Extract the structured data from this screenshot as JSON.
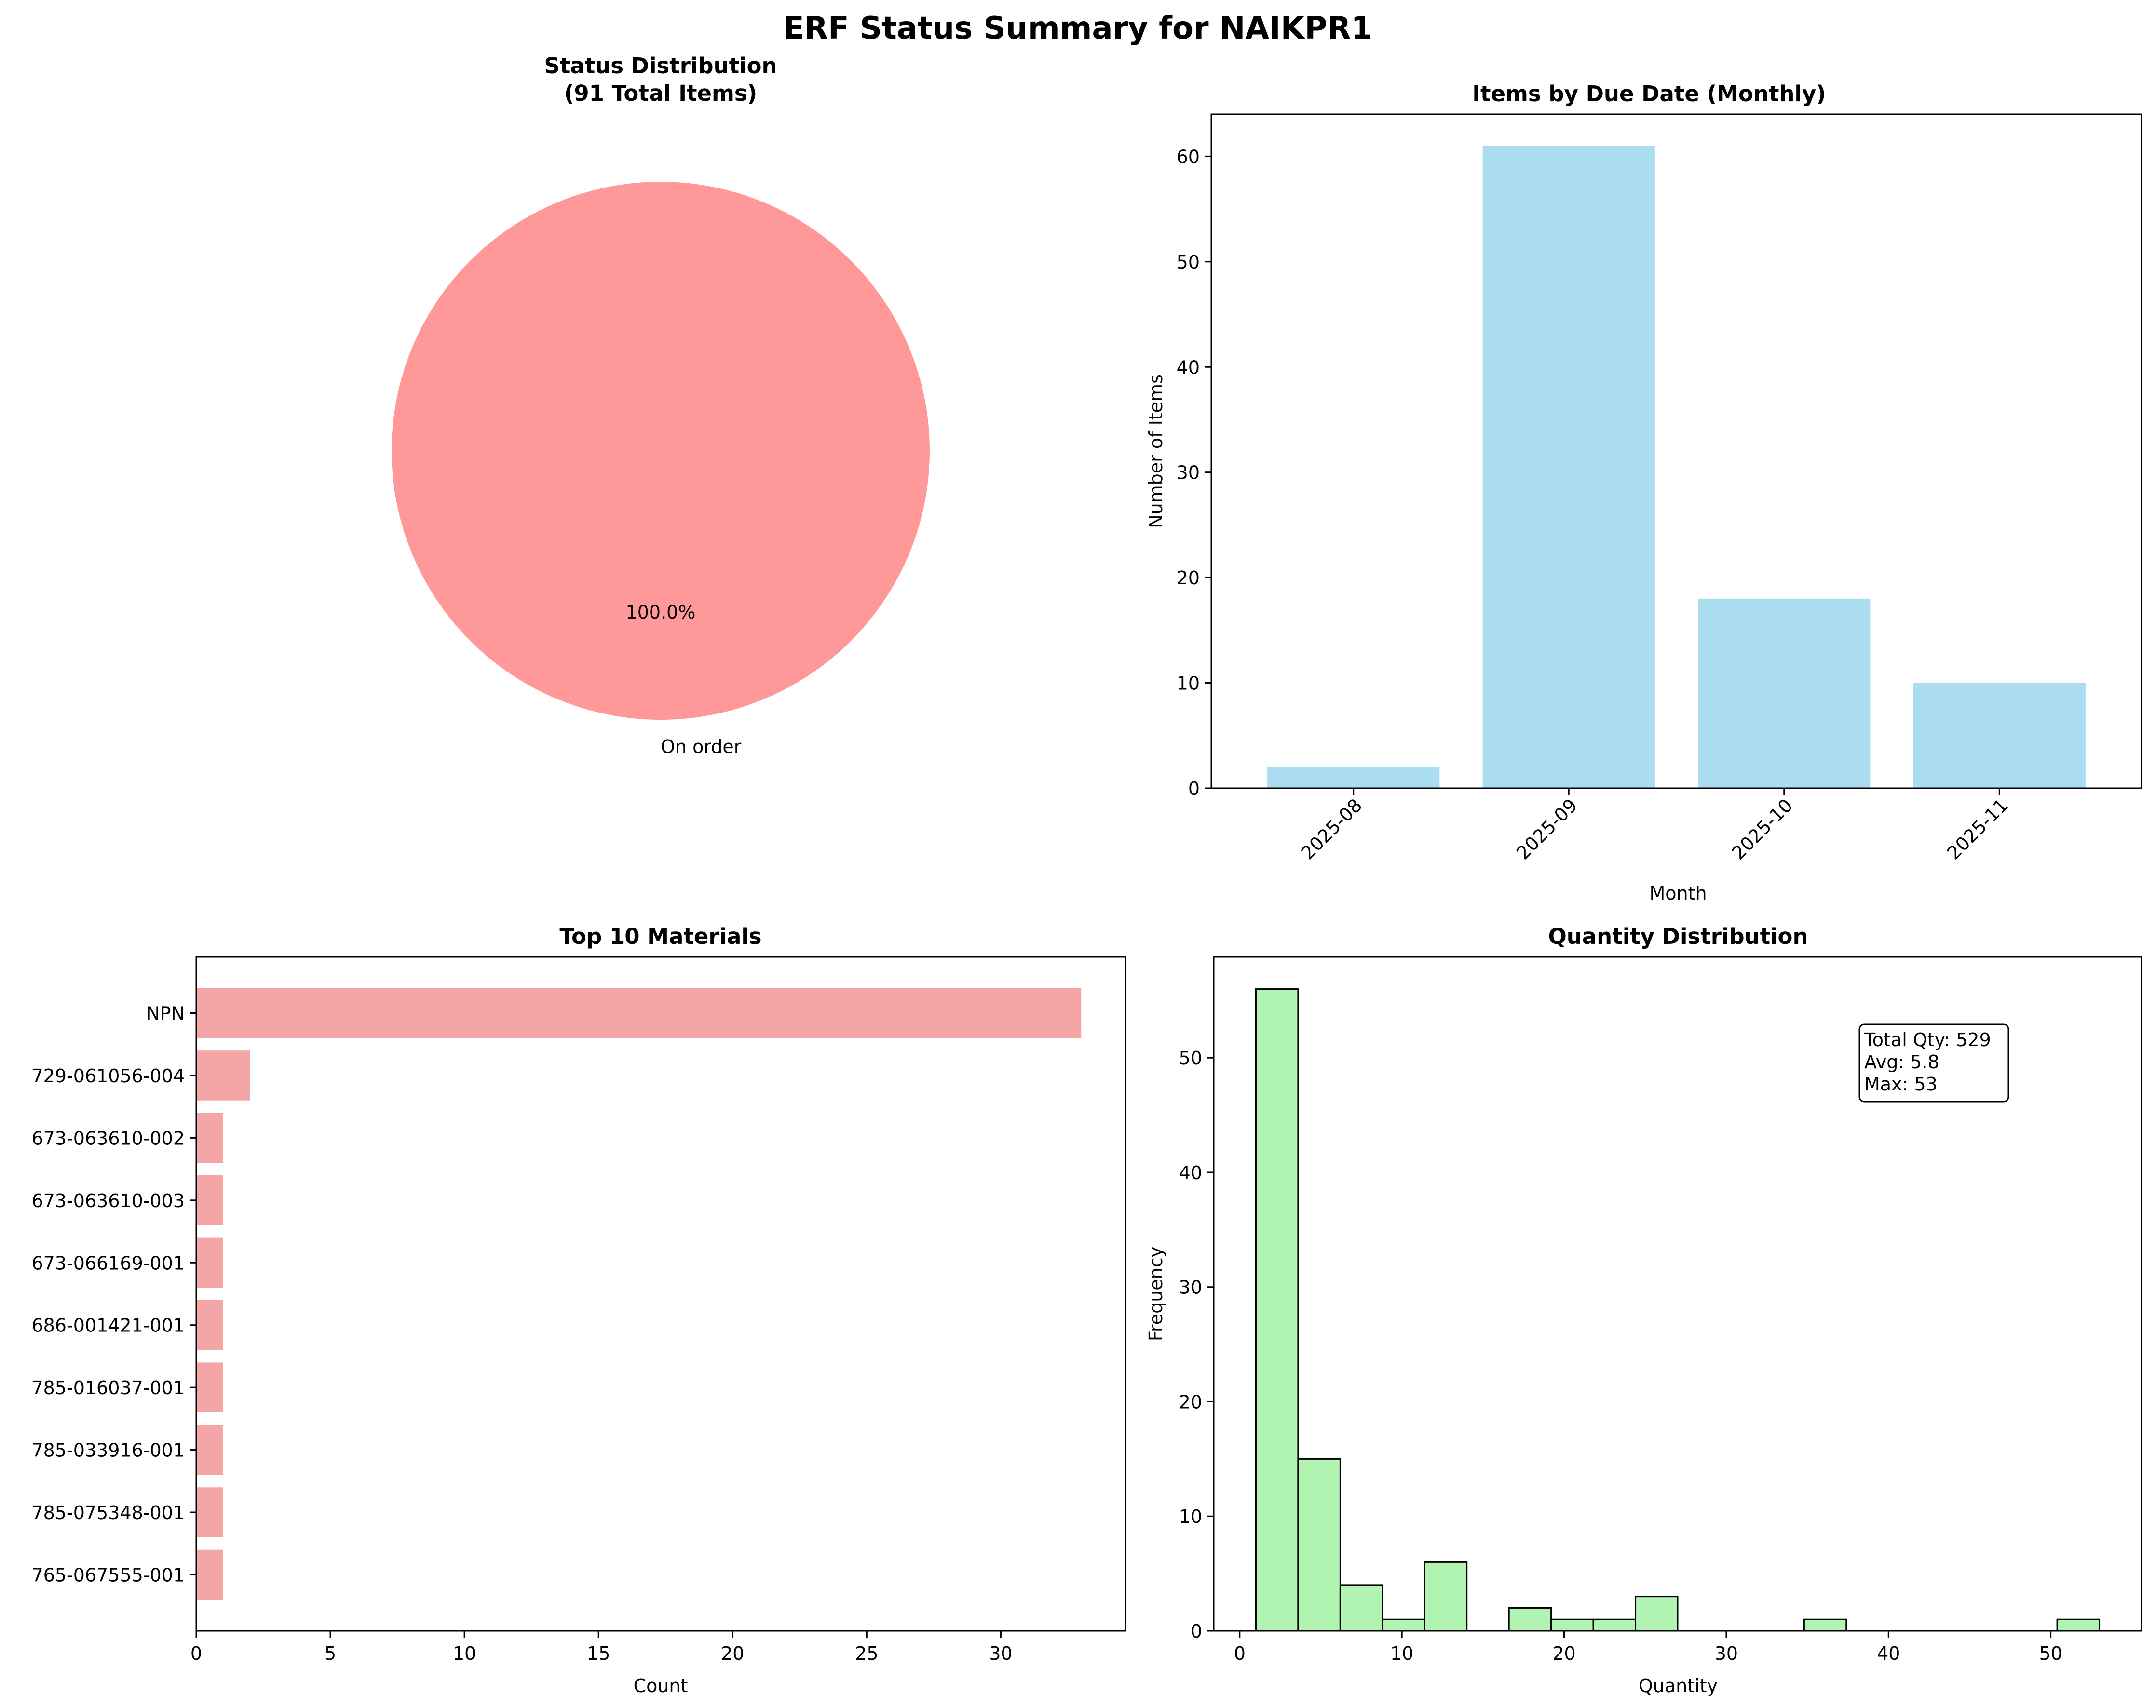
{
  "title": "ERF Status Summary for NAIKPR1",
  "colors": {
    "pie": "#ff9999",
    "monthly_bar": "#87ceeb",
    "materials_bar": "#f08080",
    "histogram": "#90ee90",
    "edge": "#000000"
  },
  "chart_data": [
    {
      "type": "pie",
      "title": "Status Distribution\n(91 Total Items)",
      "title_lines": [
        "Status Distribution",
        "(91 Total Items)"
      ],
      "slices": [
        {
          "label": "On order",
          "value": 91,
          "pct_label": "100.0%"
        }
      ]
    },
    {
      "type": "bar",
      "title": "Items by Due Date (Monthly)",
      "xlabel": "Month",
      "ylabel": "Number of Items",
      "categories": [
        "2025-08",
        "2025-09",
        "2025-10",
        "2025-11"
      ],
      "values": [
        2,
        61,
        18,
        10
      ],
      "ylim": [
        0,
        64
      ],
      "yticks": [
        0,
        10,
        20,
        30,
        40,
        50,
        60
      ],
      "grid": false
    },
    {
      "type": "bar",
      "orientation": "horizontal",
      "title": "Top 10 Materials",
      "xlabel": "Count",
      "ylabel": "",
      "categories": [
        "NPN",
        "729-061056-004",
        "673-063610-002",
        "673-063610-003",
        "673-066169-001",
        "686-001421-001",
        "785-016037-001",
        "785-033916-001",
        "785-075348-001",
        "765-067555-001"
      ],
      "values": [
        33,
        2,
        1,
        1,
        1,
        1,
        1,
        1,
        1,
        1
      ],
      "xlim": [
        0,
        34.65
      ],
      "xticks": [
        0,
        5,
        10,
        15,
        20,
        25,
        30
      ],
      "grid": false
    },
    {
      "type": "bar",
      "subtype": "histogram",
      "title": "Quantity Distribution",
      "xlabel": "Quantity",
      "ylabel": "Frequency",
      "bin_range": [
        1,
        53
      ],
      "bins": 20,
      "counts": [
        56,
        15,
        4,
        1,
        6,
        0,
        2,
        1,
        1,
        3,
        0,
        0,
        0,
        1,
        0,
        0,
        0,
        0,
        0,
        1
      ],
      "xlim": [
        -1.6,
        55.6
      ],
      "ylim": [
        0,
        58.8
      ],
      "xticks": [
        0,
        10,
        20,
        30,
        40,
        50
      ],
      "yticks": [
        0,
        10,
        20,
        30,
        40,
        50
      ],
      "annotation": [
        "Total Qty: 529",
        "Avg: 5.8",
        "Max: 53"
      ],
      "annotation_placement": "top-right",
      "grid": false
    }
  ]
}
